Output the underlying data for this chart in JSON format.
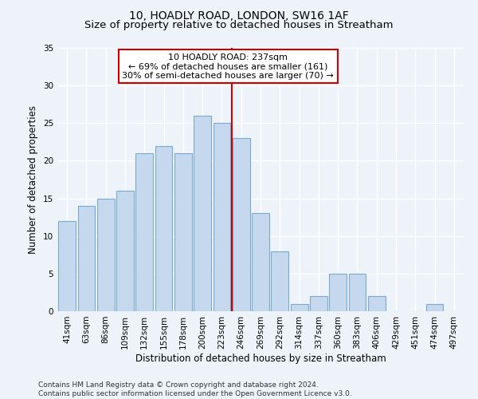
{
  "title": "10, HOADLY ROAD, LONDON, SW16 1AF",
  "subtitle": "Size of property relative to detached houses in Streatham",
  "xlabel": "Distribution of detached houses by size in Streatham",
  "ylabel": "Number of detached properties",
  "bar_labels": [
    "41sqm",
    "63sqm",
    "86sqm",
    "109sqm",
    "132sqm",
    "155sqm",
    "178sqm",
    "200sqm",
    "223sqm",
    "246sqm",
    "269sqm",
    "292sqm",
    "314sqm",
    "337sqm",
    "360sqm",
    "383sqm",
    "406sqm",
    "429sqm",
    "451sqm",
    "474sqm",
    "497sqm"
  ],
  "bar_values": [
    12,
    14,
    15,
    16,
    21,
    22,
    21,
    26,
    25,
    23,
    13,
    8,
    1,
    2,
    5,
    5,
    2,
    0,
    0,
    1,
    0
  ],
  "bar_color": "#c5d8ed",
  "bar_edgecolor": "#7aabce",
  "background_color": "#eef3f9",
  "grid_color": "#ffffff",
  "property_label": "10 HOADLY ROAD: 237sqm",
  "annotation_line1": "← 69% of detached houses are smaller (161)",
  "annotation_line2": "30% of semi-detached houses are larger (70) →",
  "vline_color": "#cc0000",
  "annotation_box_edgecolor": "#cc0000",
  "annotation_box_facecolor": "#ffffff",
  "ylim": [
    0,
    35
  ],
  "yticks": [
    0,
    5,
    10,
    15,
    20,
    25,
    30,
    35
  ],
  "footnote1": "Contains HM Land Registry data © Crown copyright and database right 2024.",
  "footnote2": "Contains public sector information licensed under the Open Government Licence v3.0.",
  "title_fontsize": 10,
  "subtitle_fontsize": 9.5,
  "axis_label_fontsize": 8.5,
  "tick_fontsize": 7.5,
  "annotation_fontsize": 8,
  "footnote_fontsize": 6.5,
  "vline_x": 8.5
}
